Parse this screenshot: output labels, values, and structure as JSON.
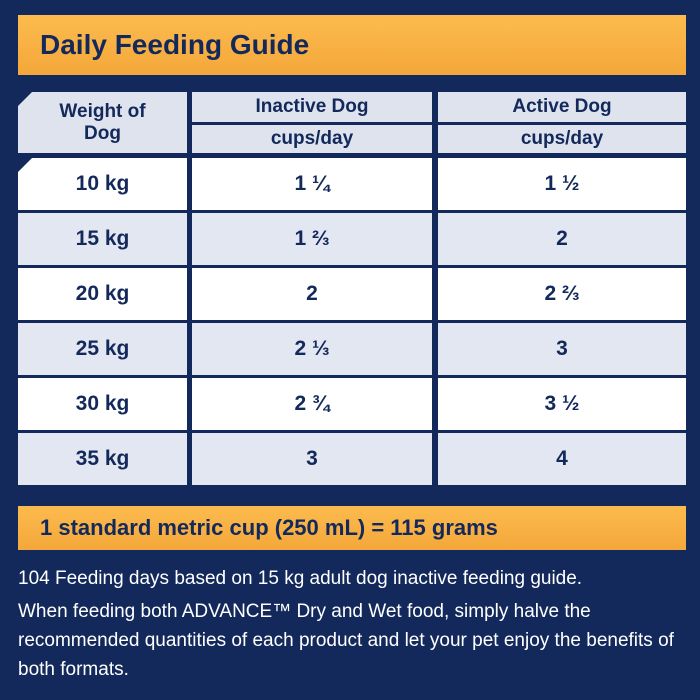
{
  "header": {
    "title": "Daily Feeding Guide"
  },
  "table": {
    "columns": [
      {
        "label": "Weight of Dog"
      },
      {
        "label": "Inactive Dog",
        "unit": "cups/day"
      },
      {
        "label": "Active Dog",
        "unit": "cups/day"
      }
    ],
    "rows": [
      [
        "10 kg",
        "1 ¼",
        "1 ½"
      ],
      [
        "15 kg",
        "1 ⅔",
        "2"
      ],
      [
        "20 kg",
        "2",
        "2 ⅔"
      ],
      [
        "25 kg",
        "2 ⅓",
        "3"
      ],
      [
        "30 kg",
        "2 ¾",
        "3 ½"
      ],
      [
        "35 kg",
        "3",
        "4"
      ]
    ]
  },
  "footnote": {
    "cup": "1 standard metric cup (250 mL) = 115 grams"
  },
  "notes": [
    "104 Feeding days based on 15 kg adult dog inactive feeding guide.",
    "When feeding both ADVANCE™ Dry and Wet food, simply halve the recommended quantities of each product and let your pet enjoy the benefits of both formats."
  ]
}
